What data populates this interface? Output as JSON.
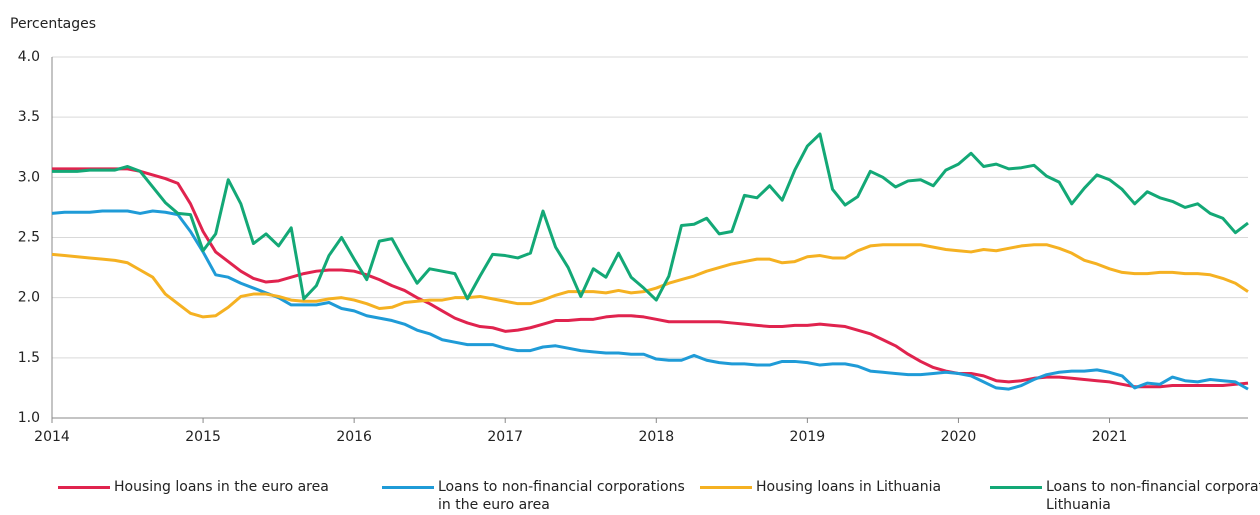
{
  "chart_data": {
    "type": "line",
    "y_label": "Percentages",
    "categories": [
      "2014",
      null,
      null,
      null,
      null,
      null,
      null,
      null,
      null,
      null,
      null,
      null,
      "2015",
      null,
      null,
      null,
      null,
      null,
      null,
      null,
      null,
      null,
      null,
      null,
      "2016",
      null,
      null,
      null,
      null,
      null,
      null,
      null,
      null,
      null,
      null,
      null,
      "2017",
      null,
      null,
      null,
      null,
      null,
      null,
      null,
      null,
      null,
      null,
      null,
      "2018",
      null,
      null,
      null,
      null,
      null,
      null,
      null,
      null,
      null,
      null,
      null,
      "2019",
      null,
      null,
      null,
      null,
      null,
      null,
      null,
      null,
      null,
      null,
      null,
      "2020",
      null,
      null,
      null,
      null,
      null,
      null,
      null,
      null,
      null,
      null,
      null,
      "2021",
      null,
      null,
      null,
      null,
      null,
      null,
      null,
      null,
      null,
      null,
      null
    ],
    "ylim": [
      1.0,
      4.0
    ],
    "yticks": [
      {
        "value": 1.0,
        "label": "1.0"
      },
      {
        "value": 1.5,
        "label": "1.5"
      },
      {
        "value": 2.0,
        "label": "2.0"
      },
      {
        "value": 2.5,
        "label": "2.5"
      },
      {
        "value": 3.0,
        "label": "3.0"
      },
      {
        "value": 3.5,
        "label": "3.5"
      },
      {
        "value": 4.0,
        "label": "4.0"
      }
    ],
    "grid": true,
    "series": [
      {
        "name": "Housing loans in the euro area",
        "color": "#e0234e",
        "values": [
          3.07,
          3.07,
          3.07,
          3.07,
          3.07,
          3.07,
          3.07,
          3.05,
          3.02,
          2.99,
          2.95,
          2.78,
          2.55,
          2.38,
          2.3,
          2.22,
          2.16,
          2.13,
          2.14,
          2.17,
          2.2,
          2.22,
          2.23,
          2.23,
          2.22,
          2.19,
          2.15,
          2.1,
          2.06,
          2.0,
          1.95,
          1.89,
          1.83,
          1.79,
          1.76,
          1.75,
          1.72,
          1.73,
          1.75,
          1.78,
          1.81,
          1.81,
          1.82,
          1.82,
          1.84,
          1.85,
          1.85,
          1.84,
          1.82,
          1.8,
          1.8,
          1.8,
          1.8,
          1.8,
          1.79,
          1.78,
          1.77,
          1.76,
          1.76,
          1.77,
          1.77,
          1.78,
          1.77,
          1.76,
          1.73,
          1.7,
          1.65,
          1.6,
          1.53,
          1.47,
          1.42,
          1.39,
          1.37,
          1.37,
          1.35,
          1.31,
          1.3,
          1.31,
          1.33,
          1.34,
          1.34,
          1.33,
          1.32,
          1.31,
          1.3,
          1.28,
          1.26,
          1.26,
          1.26,
          1.27,
          1.27,
          1.27,
          1.27,
          1.27,
          1.28,
          1.29
        ]
      },
      {
        "name": "Loans to non-financial corporations in the euro area",
        "color": "#1f9bd7",
        "values": [
          2.7,
          2.71,
          2.71,
          2.71,
          2.72,
          2.72,
          2.72,
          2.7,
          2.72,
          2.71,
          2.69,
          2.55,
          2.38,
          2.19,
          2.17,
          2.12,
          2.08,
          2.04,
          2.0,
          1.94,
          1.94,
          1.94,
          1.96,
          1.91,
          1.89,
          1.85,
          1.83,
          1.81,
          1.78,
          1.73,
          1.7,
          1.65,
          1.63,
          1.61,
          1.61,
          1.61,
          1.58,
          1.56,
          1.56,
          1.59,
          1.6,
          1.58,
          1.56,
          1.55,
          1.54,
          1.54,
          1.53,
          1.53,
          1.49,
          1.48,
          1.48,
          1.52,
          1.48,
          1.46,
          1.45,
          1.45,
          1.44,
          1.44,
          1.47,
          1.47,
          1.46,
          1.44,
          1.45,
          1.45,
          1.43,
          1.39,
          1.38,
          1.37,
          1.36,
          1.36,
          1.37,
          1.38,
          1.37,
          1.35,
          1.3,
          1.25,
          1.24,
          1.27,
          1.32,
          1.36,
          1.38,
          1.39,
          1.39,
          1.4,
          1.38,
          1.35,
          1.25,
          1.29,
          1.28,
          1.34,
          1.31,
          1.3,
          1.32,
          1.31,
          1.3,
          1.24
        ]
      },
      {
        "name": "Housing loans in Lithuania",
        "color": "#f5b122",
        "values": [
          2.36,
          2.35,
          2.34,
          2.33,
          2.32,
          2.31,
          2.29,
          2.23,
          2.17,
          2.03,
          1.95,
          1.87,
          1.84,
          1.85,
          1.92,
          2.01,
          2.03,
          2.03,
          2.01,
          1.98,
          1.97,
          1.97,
          1.99,
          2.0,
          1.98,
          1.95,
          1.91,
          1.92,
          1.96,
          1.97,
          1.98,
          1.98,
          2.0,
          2.0,
          2.01,
          1.99,
          1.97,
          1.95,
          1.95,
          1.98,
          2.02,
          2.05,
          2.05,
          2.05,
          2.04,
          2.06,
          2.04,
          2.05,
          2.08,
          2.12,
          2.15,
          2.18,
          2.22,
          2.25,
          2.28,
          2.3,
          2.32,
          2.32,
          2.29,
          2.3,
          2.34,
          2.35,
          2.33,
          2.33,
          2.39,
          2.43,
          2.44,
          2.44,
          2.44,
          2.44,
          2.42,
          2.4,
          2.39,
          2.38,
          2.4,
          2.39,
          2.41,
          2.43,
          2.44,
          2.44,
          2.41,
          2.37,
          2.31,
          2.28,
          2.24,
          2.21,
          2.2,
          2.2,
          2.21,
          2.21,
          2.2,
          2.2,
          2.19,
          2.16,
          2.12,
          2.05
        ]
      },
      {
        "name": "Loans to non-financial corporations in Lithuania",
        "color": "#13a876",
        "values": [
          3.05,
          3.05,
          3.05,
          3.06,
          3.06,
          3.06,
          3.09,
          3.05,
          2.92,
          2.79,
          2.7,
          2.69,
          2.39,
          2.53,
          2.98,
          2.78,
          2.45,
          2.53,
          2.43,
          2.58,
          1.99,
          2.1,
          2.35,
          2.5,
          2.32,
          2.15,
          2.47,
          2.49,
          2.3,
          2.12,
          2.24,
          2.22,
          2.2,
          1.99,
          2.18,
          2.36,
          2.35,
          2.33,
          2.37,
          2.72,
          2.42,
          2.25,
          2.01,
          2.24,
          2.17,
          2.37,
          2.17,
          2.08,
          1.98,
          2.18,
          2.6,
          2.61,
          2.66,
          2.53,
          2.55,
          2.85,
          2.83,
          2.93,
          2.81,
          3.06,
          3.26,
          3.36,
          2.9,
          2.77,
          2.84,
          3.05,
          3.0,
          2.92,
          2.97,
          2.98,
          2.93,
          3.06,
          3.11,
          3.2,
          3.09,
          3.11,
          3.07,
          3.08,
          3.1,
          3.01,
          2.96,
          2.78,
          2.91,
          3.02,
          2.98,
          2.9,
          2.78,
          2.88,
          2.83,
          2.8,
          2.75,
          2.78,
          2.7,
          2.66,
          2.54,
          2.62
        ]
      }
    ]
  }
}
